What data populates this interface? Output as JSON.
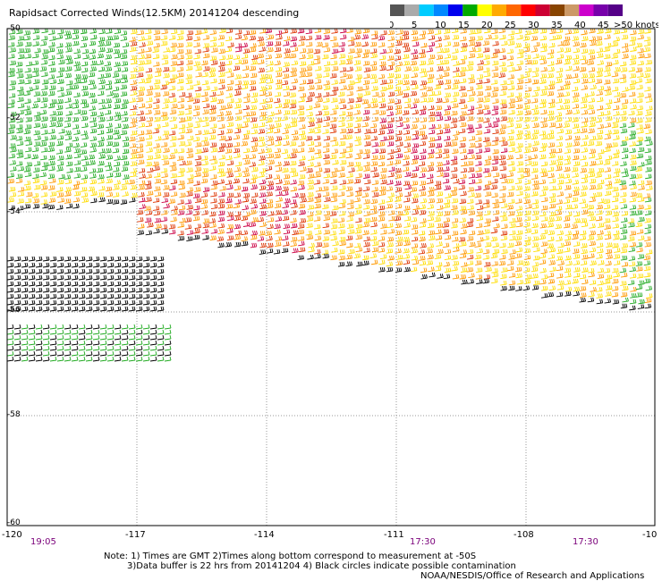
{
  "title": "Rapidsact Corrected Winds(12.5KM) 20141204 descending",
  "legend": {
    "colors": [
      "#555555",
      "#aaaaaa",
      "#00ccff",
      "#0088ff",
      "#0000ee",
      "#00aa00",
      "#ffff00",
      "#ffaa00",
      "#ff6600",
      "#ff0000",
      "#cc0033",
      "#884400",
      "#cc9966",
      "#cc00cc",
      "#7700aa",
      "#550088"
    ],
    "labels": [
      "0",
      "5",
      "10",
      "15",
      "20",
      "25",
      "30",
      "35",
      "40",
      "45",
      ">50 knots"
    ]
  },
  "axes": {
    "x_ticks": [
      "-120",
      "-117",
      "-114",
      "-111",
      "-108",
      "-10"
    ],
    "y_ticks": [
      "-50",
      "-52",
      "-54",
      "-56",
      "-58",
      "-60"
    ]
  },
  "times": [
    "19:05",
    "17:30",
    "17:30"
  ],
  "notes": {
    "line1": "Note: 1) Times are GMT 2)Times along bottom correspond to measurement at -50S",
    "line2": "3)Data buffer is 22 hrs from 20141204 4) Black circles indicate possible contamination",
    "credit": "NOAA/NESDIS/Office of Research and Applications"
  },
  "barb_colors": {
    "green": "#22aa22",
    "yellow": "#ffdd00",
    "orange": "#ff9900",
    "red": "#dd3300",
    "crimson": "#cc0044",
    "black": "#000000"
  }
}
